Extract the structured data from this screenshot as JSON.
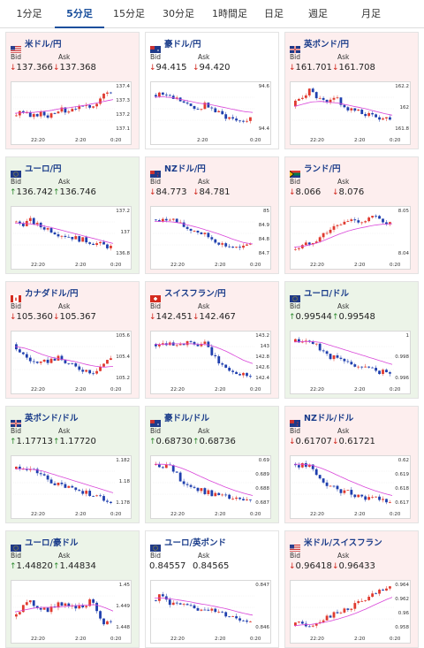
{
  "tabs": [
    {
      "label": "1分足"
    },
    {
      "label": "5分足"
    },
    {
      "label": "15分足"
    },
    {
      "label": "30分足"
    },
    {
      "label": "1時間足"
    },
    {
      "label": "日足"
    },
    {
      "label": "週足"
    },
    {
      "label": "月足"
    }
  ],
  "active_tab": "5分足",
  "labels": {
    "bid": "Bid",
    "ask": "Ask"
  },
  "colors": {
    "down": "#d0241a",
    "up": "#2e8b2e",
    "title": "#1a3c8a",
    "ma": "#d946d9",
    "ma2": "#4aa3e0",
    "candle_up": "#e03a2f",
    "candle_down": "#1f3fae"
  },
  "pairs": [
    {
      "name": "米ドル/円",
      "flag": "us-flag",
      "dir": "down",
      "bid": "137.366",
      "ask": "137.368",
      "bid_arrow": "↓",
      "ask_arrow": "↓",
      "y_ticks": [
        "137.4",
        "137.3",
        "137.2",
        "137.1"
      ],
      "x_ticks": [
        "22:20",
        "2:20",
        "0:20"
      ]
    },
    {
      "name": "豪ドル/円",
      "flag": "au-flag",
      "dir": "neutral",
      "bid": "94.415",
      "ask": "94.420",
      "bid_arrow": "↓",
      "ask_arrow": "↓",
      "y_ticks": [
        "94.6",
        "94.4"
      ],
      "x_ticks": [
        "2:20",
        "0:20"
      ]
    },
    {
      "name": "英ポンド/円",
      "flag": "uk-flag",
      "dir": "down",
      "bid": "161.701",
      "ask": "161.708",
      "bid_arrow": "↓",
      "ask_arrow": "↓",
      "y_ticks": [
        "162.2",
        "162",
        "161.8"
      ],
      "x_ticks": [
        "22:20",
        "2:20",
        "0:20"
      ]
    },
    {
      "name": "ユーロ/円",
      "flag": "eu-flag",
      "dir": "up",
      "bid": "136.742",
      "ask": "136.746",
      "bid_arrow": "↑",
      "ask_arrow": "↑",
      "y_ticks": [
        "137.2",
        "137",
        "136.8"
      ],
      "x_ticks": [
        "22:20",
        "2:20",
        "0:20"
      ]
    },
    {
      "name": "NZドル/円",
      "flag": "nz-flag",
      "dir": "down",
      "bid": "84.773",
      "ask": "84.781",
      "bid_arrow": "↓",
      "ask_arrow": "↓",
      "y_ticks": [
        "85",
        "84.9",
        "84.8",
        "84.7"
      ],
      "x_ticks": [
        "22:20",
        "2:20",
        "0:20"
      ]
    },
    {
      "name": "ランド/円",
      "flag": "za-flag",
      "dir": "down",
      "bid": "8.066",
      "ask": "8.076",
      "bid_arrow": "↓",
      "ask_arrow": "↓",
      "y_ticks": [
        "8.05",
        "8.04"
      ],
      "x_ticks": [
        "22:20",
        "2:20",
        "0:20"
      ]
    },
    {
      "name": "カナダドル/円",
      "flag": "ca-flag",
      "dir": "down",
      "bid": "105.360",
      "ask": "105.367",
      "bid_arrow": "↓",
      "ask_arrow": "↓",
      "y_ticks": [
        "105.6",
        "105.4",
        "105.2"
      ],
      "x_ticks": [
        "22:20",
        "2:20",
        "0:20"
      ]
    },
    {
      "name": "スイスフラン/円",
      "flag": "ch-flag",
      "dir": "down",
      "bid": "142.451",
      "ask": "142.467",
      "bid_arrow": "↓",
      "ask_arrow": "↓",
      "y_ticks": [
        "143.2",
        "143",
        "142.8",
        "142.6",
        "142.4"
      ],
      "x_ticks": [
        "22:20",
        "2:20",
        "0:20"
      ]
    },
    {
      "name": "ユーロ/ドル",
      "flag": "eu-flag",
      "dir": "up",
      "bid": "0.99544",
      "ask": "0.99548",
      "bid_arrow": "↑",
      "ask_arrow": "↑",
      "y_ticks": [
        "1",
        "0.998",
        "0.996"
      ],
      "x_ticks": [
        "22:20",
        "2:20",
        "0:20"
      ]
    },
    {
      "name": "英ポンド/ドル",
      "flag": "uk-flag",
      "dir": "up",
      "bid": "1.17713",
      "ask": "1.17720",
      "bid_arrow": "↑",
      "ask_arrow": "↑",
      "y_ticks": [
        "1.182",
        "1.18",
        "1.178"
      ],
      "x_ticks": [
        "22:20",
        "2:20",
        "0:20"
      ]
    },
    {
      "name": "豪ドル/ドル",
      "flag": "au-flag",
      "dir": "up",
      "bid": "0.68730",
      "ask": "0.68736",
      "bid_arrow": "↑",
      "ask_arrow": "↑",
      "y_ticks": [
        "0.69",
        "0.689",
        "0.688",
        "0.687"
      ],
      "x_ticks": [
        "22:20",
        "2:20",
        "0:20"
      ]
    },
    {
      "name": "NZドル/ドル",
      "flag": "nz-flag",
      "dir": "down",
      "bid": "0.61707",
      "ask": "0.61721",
      "bid_arrow": "↓",
      "ask_arrow": "↓",
      "y_ticks": [
        "0.62",
        "0.619",
        "0.618",
        "0.617"
      ],
      "x_ticks": [
        "22:20",
        "2:20",
        "0:20"
      ]
    },
    {
      "name": "ユーロ/豪ドル",
      "flag": "eu-flag",
      "dir": "up",
      "bid": "1.44820",
      "ask": "1.44834",
      "bid_arrow": "↑",
      "ask_arrow": "↑",
      "y_ticks": [
        "1.45",
        "1.449",
        "1.448"
      ],
      "x_ticks": [
        "22:20",
        "2:20",
        "0:20"
      ]
    },
    {
      "name": "ユーロ/英ポンド",
      "flag": "eu-flag",
      "dir": "neutral",
      "bid": "0.84557",
      "ask": "0.84565",
      "bid_arrow": "",
      "ask_arrow": "",
      "y_ticks": [
        "0.847",
        "0.846"
      ],
      "x_ticks": [
        "22:20",
        "2:20",
        "0:20"
      ]
    },
    {
      "name": "米ドル/スイスフラン",
      "flag": "us-flag",
      "dir": "down",
      "bid": "0.96418",
      "ask": "0.96433",
      "bid_arrow": "↓",
      "ask_arrow": "↓",
      "y_ticks": [
        "0.964",
        "0.962",
        "0.96",
        "0.958"
      ],
      "x_ticks": [
        "22:20",
        "2:20",
        "0:20"
      ]
    }
  ],
  "chart_data": [
    {
      "type": "candlestick",
      "pair": "米ドル/円",
      "trend": [
        0.35,
        0.45,
        0.3,
        0.4,
        0.35,
        0.5,
        0.45,
        0.55,
        0.5,
        0.6,
        0.75,
        0.9
      ],
      "ma": [
        0.4,
        0.42,
        0.42,
        0.44,
        0.46,
        0.5,
        0.52,
        0.55,
        0.58,
        0.62,
        0.66,
        0.7
      ]
    },
    {
      "type": "candlestick",
      "pair": "豪ドル/円",
      "trend": [
        0.8,
        0.85,
        0.75,
        0.7,
        0.55,
        0.5,
        0.6,
        0.45,
        0.35,
        0.3,
        0.25,
        0.3
      ],
      "ma": [
        0.75,
        0.76,
        0.74,
        0.7,
        0.66,
        0.62,
        0.6,
        0.56,
        0.52,
        0.48,
        0.44,
        0.42
      ]
    },
    {
      "type": "candlestick",
      "pair": "英ポンド/円",
      "trend": [
        0.55,
        0.75,
        0.9,
        0.7,
        0.6,
        0.75,
        0.5,
        0.45,
        0.4,
        0.35,
        0.3,
        0.3
      ],
      "ma": [
        0.55,
        0.6,
        0.65,
        0.66,
        0.64,
        0.62,
        0.58,
        0.54,
        0.5,
        0.45,
        0.4,
        0.36
      ]
    },
    {
      "type": "candlestick",
      "pair": "ユーロ/円",
      "trend": [
        0.75,
        0.7,
        0.78,
        0.65,
        0.6,
        0.5,
        0.45,
        0.4,
        0.35,
        0.3,
        0.25,
        0.2
      ],
      "ma": [
        0.72,
        0.72,
        0.7,
        0.67,
        0.63,
        0.58,
        0.53,
        0.48,
        0.43,
        0.38,
        0.33,
        0.28
      ]
    },
    {
      "type": "candlestick",
      "pair": "NZドル/円",
      "trend": [
        0.8,
        0.75,
        0.85,
        0.7,
        0.6,
        0.55,
        0.45,
        0.35,
        0.25,
        0.2,
        0.15,
        0.3
      ],
      "ma": [
        0.76,
        0.76,
        0.75,
        0.72,
        0.67,
        0.62,
        0.56,
        0.5,
        0.43,
        0.36,
        0.3,
        0.27
      ]
    },
    {
      "type": "candlestick",
      "pair": "ランド/円",
      "trend": [
        0.15,
        0.2,
        0.3,
        0.4,
        0.55,
        0.65,
        0.75,
        0.8,
        0.75,
        0.85,
        0.8,
        0.7
      ],
      "ma": [
        0.2,
        0.22,
        0.26,
        0.32,
        0.4,
        0.48,
        0.55,
        0.6,
        0.64,
        0.68,
        0.7,
        0.71
      ]
    },
    {
      "type": "candlestick",
      "pair": "カナダドル/円",
      "trend": [
        0.8,
        0.6,
        0.45,
        0.35,
        0.45,
        0.5,
        0.4,
        0.3,
        0.25,
        0.2,
        0.35,
        0.5
      ],
      "ma": [
        0.75,
        0.72,
        0.66,
        0.58,
        0.52,
        0.48,
        0.45,
        0.41,
        0.36,
        0.32,
        0.3,
        0.32
      ]
    },
    {
      "type": "candlestick",
      "pair": "スイスフラン/円",
      "trend": [
        0.8,
        0.82,
        0.85,
        0.8,
        0.82,
        0.78,
        0.8,
        0.5,
        0.3,
        0.2,
        0.15,
        0.15
      ],
      "ma": [
        0.8,
        0.8,
        0.81,
        0.81,
        0.81,
        0.8,
        0.79,
        0.73,
        0.65,
        0.55,
        0.45,
        0.38
      ]
    },
    {
      "type": "candlestick",
      "pair": "ユーロ/ドル",
      "trend": [
        0.85,
        0.88,
        0.85,
        0.75,
        0.55,
        0.5,
        0.4,
        0.35,
        0.3,
        0.25,
        0.2,
        0.15
      ],
      "ma": [
        0.85,
        0.86,
        0.86,
        0.84,
        0.78,
        0.72,
        0.66,
        0.6,
        0.54,
        0.48,
        0.42,
        0.36
      ]
    },
    {
      "type": "candlestick",
      "pair": "英ポンド/ドル",
      "trend": [
        0.8,
        0.85,
        0.78,
        0.7,
        0.55,
        0.45,
        0.4,
        0.35,
        0.3,
        0.25,
        0.15,
        0.1
      ],
      "ma": [
        0.8,
        0.8,
        0.79,
        0.76,
        0.7,
        0.64,
        0.58,
        0.52,
        0.46,
        0.4,
        0.34,
        0.28
      ]
    },
    {
      "type": "candlestick",
      "pair": "豪ドル/ドル",
      "trend": [
        0.9,
        0.88,
        0.85,
        0.6,
        0.45,
        0.35,
        0.3,
        0.25,
        0.2,
        0.15,
        0.12,
        0.1
      ],
      "ma": [
        0.9,
        0.9,
        0.88,
        0.82,
        0.74,
        0.65,
        0.56,
        0.48,
        0.4,
        0.33,
        0.27,
        0.22
      ]
    },
    {
      "type": "candlestick",
      "pair": "NZドル/ドル",
      "trend": [
        0.9,
        0.88,
        0.85,
        0.6,
        0.45,
        0.35,
        0.3,
        0.25,
        0.2,
        0.15,
        0.12,
        0.1
      ],
      "ma": [
        0.9,
        0.9,
        0.88,
        0.82,
        0.74,
        0.65,
        0.56,
        0.48,
        0.4,
        0.33,
        0.27,
        0.22
      ]
    },
    {
      "type": "candlestick",
      "pair": "ユーロ/豪ドル",
      "trend": [
        0.3,
        0.5,
        0.6,
        0.5,
        0.45,
        0.55,
        0.6,
        0.5,
        0.55,
        0.65,
        0.2,
        0.15
      ],
      "ma": [
        0.4,
        0.44,
        0.48,
        0.5,
        0.5,
        0.51,
        0.53,
        0.54,
        0.55,
        0.56,
        0.5,
        0.42
      ]
    },
    {
      "type": "candlestick",
      "pair": "ユーロ/英ポンド",
      "trend": [
        0.65,
        0.75,
        0.6,
        0.55,
        0.5,
        0.45,
        0.5,
        0.4,
        0.35,
        0.3,
        0.25,
        0.2
      ],
      "ma": [
        0.7,
        0.7,
        0.68,
        0.65,
        0.62,
        0.58,
        0.55,
        0.51,
        0.47,
        0.42,
        0.37,
        0.33
      ]
    },
    {
      "type": "candlestick",
      "pair": "米ドル/スイスフラン",
      "trend": [
        0.1,
        0.15,
        0.12,
        0.2,
        0.3,
        0.35,
        0.45,
        0.55,
        0.65,
        0.75,
        0.85,
        0.9
      ],
      "ma": [
        0.1,
        0.12,
        0.13,
        0.16,
        0.2,
        0.25,
        0.31,
        0.38,
        0.46,
        0.55,
        0.64,
        0.72
      ]
    }
  ]
}
